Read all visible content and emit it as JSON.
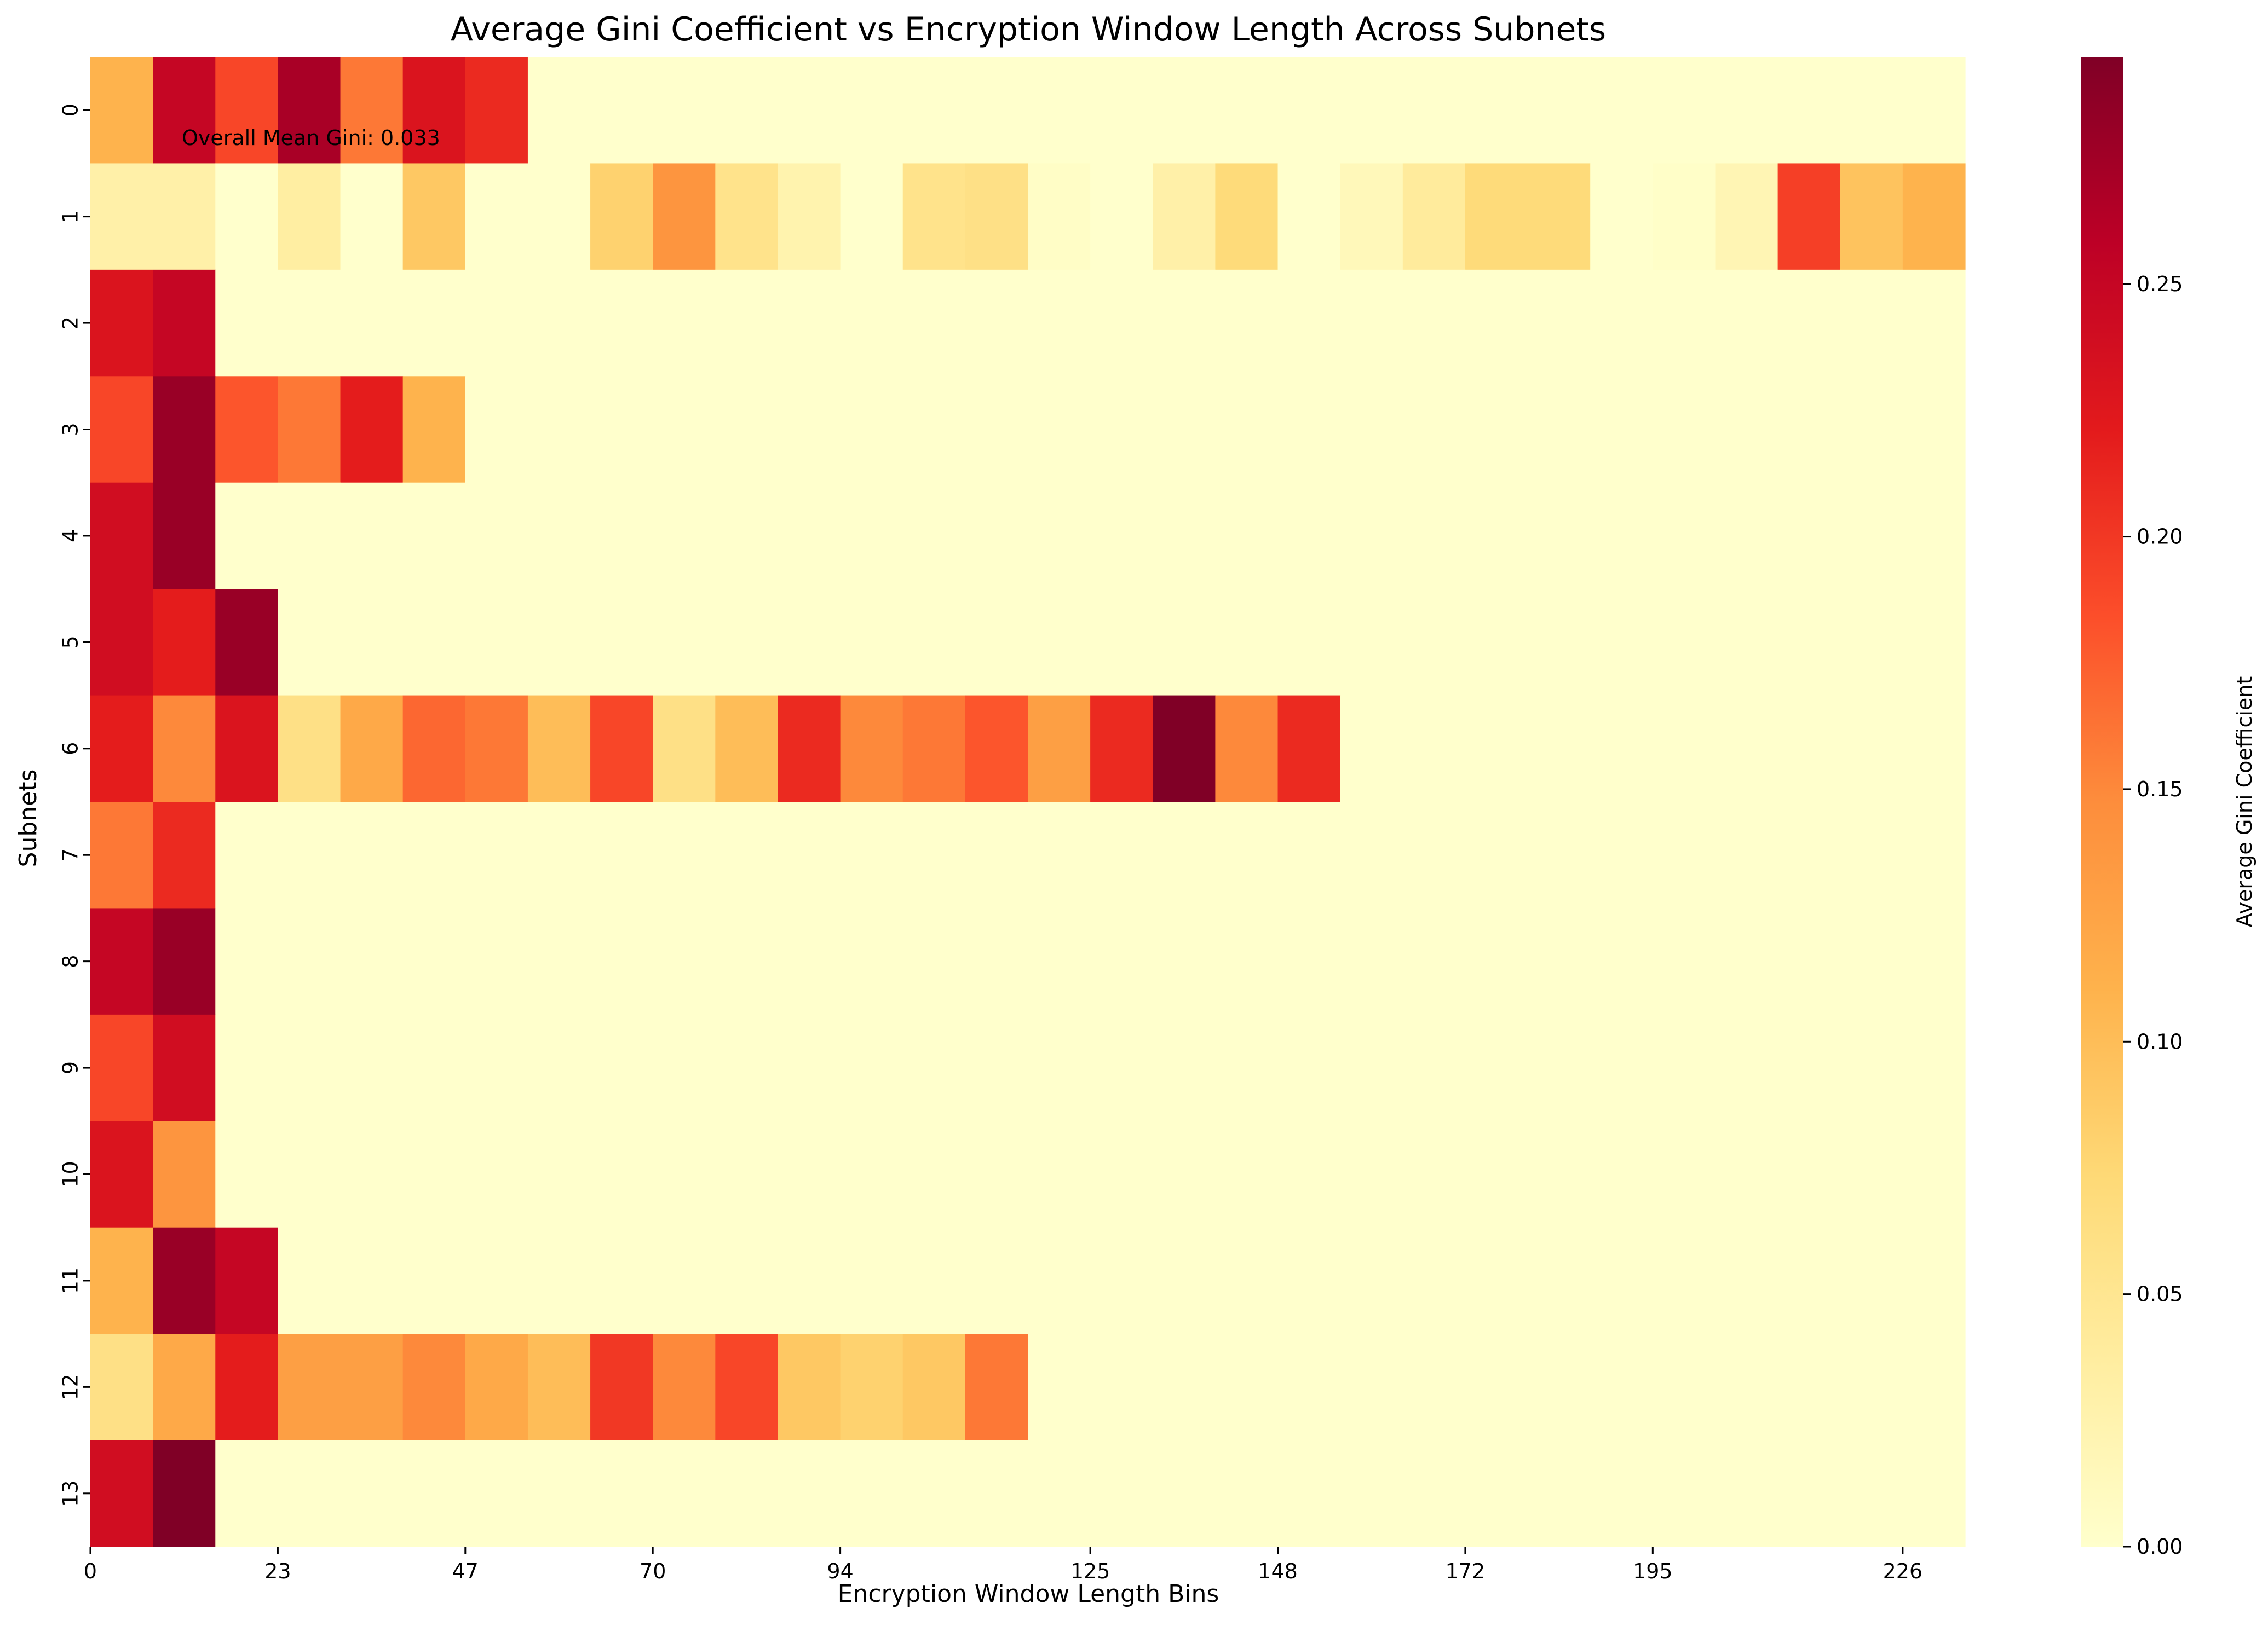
{
  "chart_data": {
    "type": "heatmap",
    "title": "Average Gini Coefficient vs Encryption Window Length Across Subnets",
    "xlabel": "Encryption Window Length Bins",
    "ylabel": "Subnets",
    "annotation": "Overall Mean Gini: 0.033",
    "colorbar": {
      "label": "Average Gini Coefficient",
      "range": [
        0,
        0.295
      ],
      "ticks": [
        "0.00",
        "0.05",
        "0.10",
        "0.15",
        "0.20",
        "0.25"
      ],
      "tick_values": [
        0,
        0.05,
        0.1,
        0.15,
        0.2,
        0.25
      ],
      "colormap": "YlOrRd"
    },
    "x_tick_labels": [
      "0",
      "23",
      "47",
      "70",
      "94",
      "125",
      "148",
      "172",
      "195",
      "226"
    ],
    "x_tick_columns": [
      0,
      3,
      6,
      9,
      12,
      16,
      19,
      22,
      25,
      29
    ],
    "num_columns": 30,
    "y_tick_labels": [
      "0",
      "1",
      "2",
      "3",
      "4",
      "5",
      "6",
      "7",
      "8",
      "9",
      "10",
      "11",
      "12",
      "13"
    ],
    "rows": [
      [
        0.11,
        0.25,
        0.19,
        0.27,
        0.16,
        0.23,
        0.21,
        0,
        0,
        0,
        0,
        0,
        0,
        0,
        0,
        0,
        0,
        0,
        0,
        0,
        0,
        0,
        0,
        0,
        0,
        0,
        0,
        0,
        0,
        0
      ],
      [
        0.03,
        0.03,
        0,
        0.035,
        0,
        0.09,
        0,
        0,
        0.08,
        0.14,
        0.055,
        0.025,
        0,
        0.055,
        0.06,
        0.005,
        0,
        0.03,
        0.07,
        0,
        0.015,
        0.04,
        0.07,
        0.07,
        0,
        0.003,
        0.02,
        0.195,
        0.095,
        0.11
      ],
      [
        0.23,
        0.25,
        0,
        0,
        0,
        0,
        0,
        0,
        0,
        0,
        0,
        0,
        0,
        0,
        0,
        0,
        0,
        0,
        0,
        0,
        0,
        0,
        0,
        0,
        0,
        0,
        0,
        0,
        0,
        0
      ],
      [
        0.19,
        0.28,
        0.18,
        0.16,
        0.22,
        0.11,
        0,
        0,
        0,
        0,
        0,
        0,
        0,
        0,
        0,
        0,
        0,
        0,
        0,
        0,
        0,
        0,
        0,
        0,
        0,
        0,
        0,
        0,
        0,
        0
      ],
      [
        0.24,
        0.28,
        0,
        0,
        0,
        0,
        0,
        0,
        0,
        0,
        0,
        0,
        0,
        0,
        0,
        0,
        0,
        0,
        0,
        0,
        0,
        0,
        0,
        0,
        0,
        0,
        0,
        0,
        0,
        0
      ],
      [
        0.24,
        0.22,
        0.28,
        0,
        0,
        0,
        0,
        0,
        0,
        0,
        0,
        0,
        0,
        0,
        0,
        0,
        0,
        0,
        0,
        0,
        0,
        0,
        0,
        0,
        0,
        0,
        0,
        0,
        0,
        0
      ],
      [
        0.22,
        0.15,
        0.23,
        0.06,
        0.12,
        0.17,
        0.16,
        0.1,
        0.19,
        0.06,
        0.1,
        0.21,
        0.15,
        0.16,
        0.18,
        0.13,
        0.21,
        0.295,
        0.15,
        0.21,
        0,
        0,
        0,
        0,
        0,
        0,
        0,
        0,
        0,
        0
      ],
      [
        0.16,
        0.21,
        0,
        0,
        0,
        0,
        0,
        0,
        0,
        0,
        0,
        0,
        0,
        0,
        0,
        0,
        0,
        0,
        0,
        0,
        0,
        0,
        0,
        0,
        0,
        0,
        0,
        0,
        0,
        0
      ],
      [
        0.25,
        0.28,
        0,
        0,
        0,
        0,
        0,
        0,
        0,
        0,
        0,
        0,
        0,
        0,
        0,
        0,
        0,
        0,
        0,
        0,
        0,
        0,
        0,
        0,
        0,
        0,
        0,
        0,
        0,
        0
      ],
      [
        0.19,
        0.24,
        0,
        0,
        0,
        0,
        0,
        0,
        0,
        0,
        0,
        0,
        0,
        0,
        0,
        0,
        0,
        0,
        0,
        0,
        0,
        0,
        0,
        0,
        0,
        0,
        0,
        0,
        0,
        0
      ],
      [
        0.23,
        0.14,
        0,
        0,
        0,
        0,
        0,
        0,
        0,
        0,
        0,
        0,
        0,
        0,
        0,
        0,
        0,
        0,
        0,
        0,
        0,
        0,
        0,
        0,
        0,
        0,
        0,
        0,
        0,
        0
      ],
      [
        0.11,
        0.28,
        0.25,
        0,
        0,
        0,
        0,
        0,
        0,
        0,
        0,
        0,
        0,
        0,
        0,
        0,
        0,
        0,
        0,
        0,
        0,
        0,
        0,
        0,
        0,
        0,
        0,
        0,
        0,
        0
      ],
      [
        0.06,
        0.12,
        0.22,
        0.13,
        0.13,
        0.15,
        0.12,
        0.1,
        0.2,
        0.15,
        0.19,
        0.09,
        0.08,
        0.09,
        0.16,
        0,
        0,
        0,
        0,
        0,
        0,
        0,
        0,
        0,
        0,
        0,
        0,
        0,
        0,
        0
      ],
      [
        0.24,
        0.295,
        0,
        0,
        0,
        0,
        0,
        0,
        0,
        0,
        0,
        0,
        0,
        0,
        0,
        0,
        0,
        0,
        0,
        0,
        0,
        0,
        0,
        0,
        0,
        0,
        0,
        0,
        0,
        0
      ]
    ]
  }
}
